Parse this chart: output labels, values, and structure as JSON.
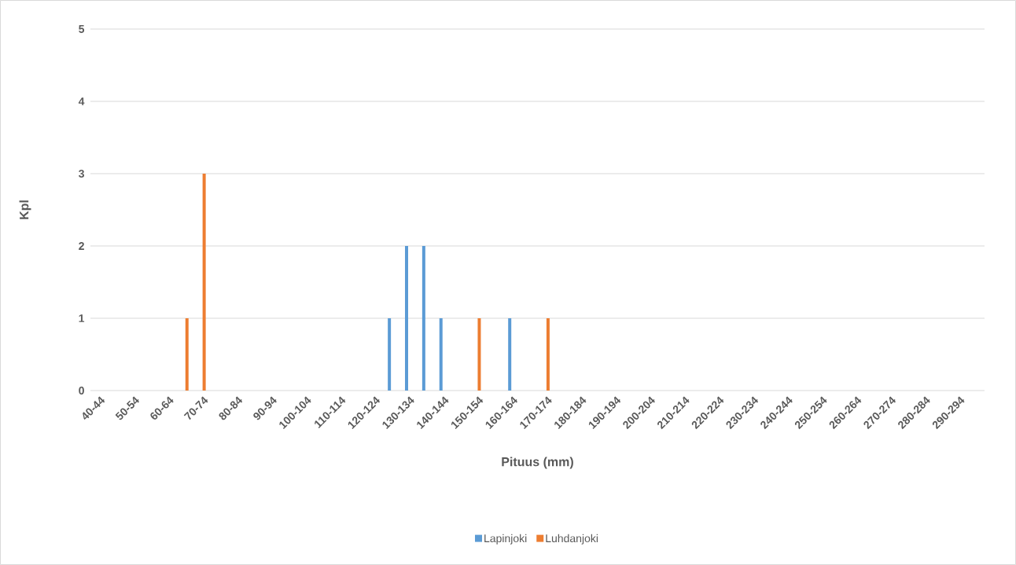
{
  "chart_data": {
    "type": "bar",
    "xlabel": "Pituus (mm)",
    "ylabel": "Kpl",
    "categories": [
      "40-44",
      null,
      "50-54",
      null,
      "60-64",
      null,
      "70-74",
      null,
      "80-84",
      null,
      "90-94",
      null,
      "100-104",
      null,
      "110-114",
      null,
      "120-124",
      null,
      "130-134",
      null,
      "140-144",
      null,
      "150-154",
      null,
      "160-164",
      null,
      "170-174",
      null,
      "180-184",
      null,
      "190-194",
      null,
      "200-204",
      null,
      "210-214",
      null,
      "220-224",
      null,
      "230-234",
      null,
      "240-244",
      null,
      "250-254",
      null,
      "260-264",
      null,
      "270-274",
      null,
      "280-284",
      null,
      "290-294",
      null
    ],
    "series": [
      {
        "name": "Lapinjoki",
        "color": "#5b9bd5",
        "values": [
          0,
          0,
          0,
          0,
          0,
          0,
          0,
          0,
          0,
          0,
          0,
          0,
          0,
          0,
          0,
          0,
          0,
          1,
          2,
          2,
          1,
          0,
          0,
          0,
          1,
          0,
          0,
          0,
          0,
          0,
          0,
          0,
          0,
          0,
          0,
          0,
          0,
          0,
          0,
          0,
          0,
          0,
          0,
          0,
          0,
          0,
          0,
          0,
          0,
          0,
          0,
          0
        ]
      },
      {
        "name": "Luhdanjoki",
        "color": "#ed7d31",
        "values": [
          0,
          0,
          0,
          0,
          0,
          1,
          3,
          0,
          0,
          0,
          0,
          0,
          0,
          0,
          0,
          0,
          0,
          0,
          0,
          0,
          0,
          0,
          1,
          0,
          0,
          0,
          1,
          0,
          0,
          0,
          0,
          0,
          0,
          0,
          0,
          0,
          0,
          0,
          0,
          0,
          0,
          0,
          0,
          0,
          0,
          0,
          0,
          0,
          0,
          0,
          0,
          0
        ]
      }
    ],
    "ylim": [
      0,
      5
    ],
    "yticks": [
      0,
      1,
      2,
      3,
      4,
      5
    ],
    "grid": "y",
    "legend": "bottom"
  }
}
